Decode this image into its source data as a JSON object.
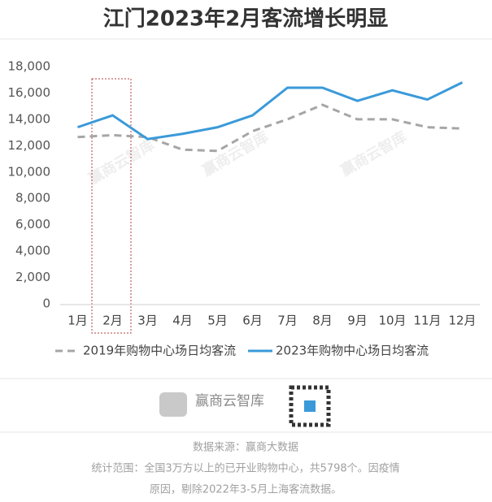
{
  "chart_data": {
    "type": "line",
    "title": "江门2023年2月客流增长明显",
    "categories": [
      "1月",
      "2月",
      "3月",
      "4月",
      "5月",
      "6月",
      "7月",
      "8月",
      "9月",
      "10月",
      "11月",
      "12月"
    ],
    "series": [
      {
        "name": "2019年购物中心场日均客流",
        "color": "#a6a6a6",
        "dashed": true,
        "values": [
          12650,
          12800,
          12650,
          11700,
          11600,
          13100,
          14000,
          15100,
          14000,
          14000,
          13400,
          13300
        ]
      },
      {
        "name": "2023年购物中心场日均客流",
        "color": "#3a9ad9",
        "dashed": false,
        "values": [
          13400,
          14300,
          12500,
          12900,
          13400,
          14300,
          16400,
          16400,
          15400,
          16200,
          15500,
          16800
        ]
      }
    ],
    "ylim": [
      0,
      18000
    ],
    "yticks": [
      0,
      {
        "value": 2000,
        "label": "2,000"
      },
      {
        "value": 4000,
        "label": "4,000"
      },
      {
        "value": 6000,
        "label": "6,000"
      },
      {
        "value": 8000,
        "label": "8,000"
      },
      {
        "value": 10000,
        "label": "10,000"
      },
      {
        "value": 12000,
        "label": "12,000"
      },
      {
        "value": 14000,
        "label": "14,000"
      },
      {
        "value": 16000,
        "label": "16,000"
      },
      {
        "value": 18000,
        "label": "18,000"
      }
    ],
    "grid": false,
    "legend": "bottom",
    "watermark": "赢商云智库",
    "logo_text": "赢商云智库",
    "source": "数据来源：赢商大数据",
    "notes": [
      "统计范围：全国3万方以上的已开业购物中心，共5798个。因疫情",
      "原因，剔除2022年3-5月上海客流数据。"
    ]
  }
}
